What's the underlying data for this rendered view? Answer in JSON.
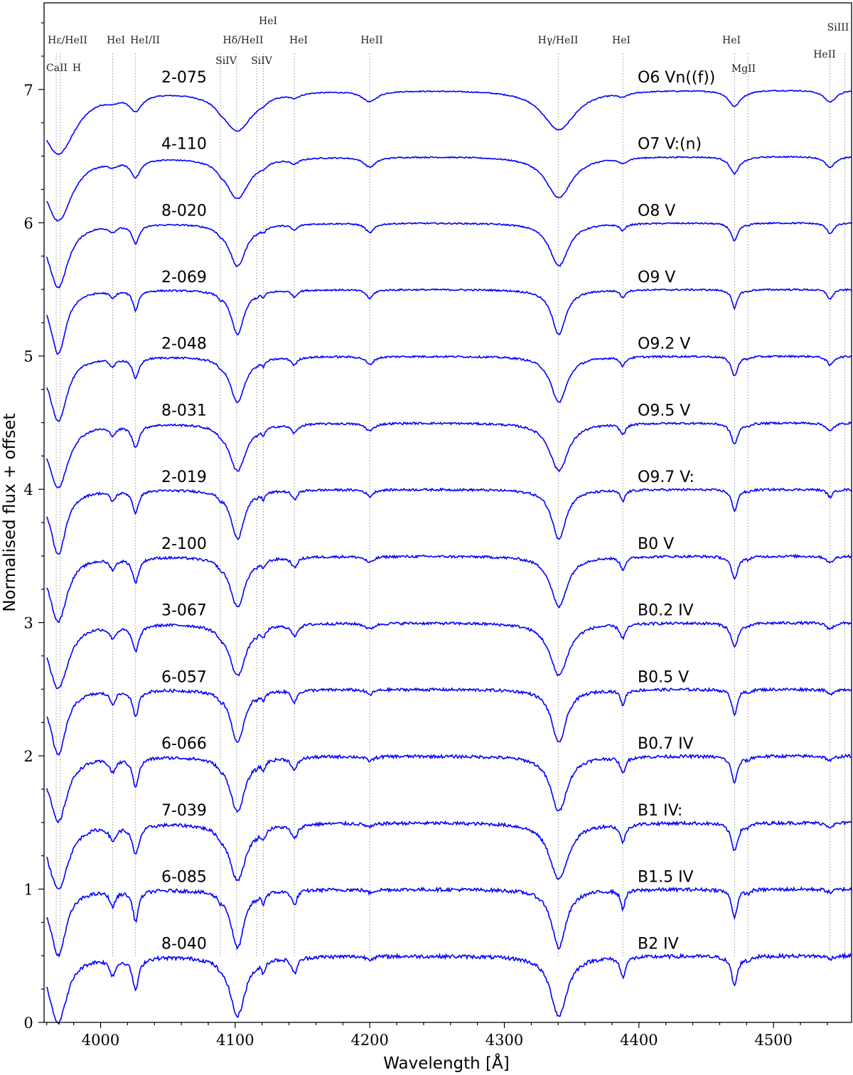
{
  "chart_data": {
    "type": "line",
    "xlabel": "Wavelength [Å]",
    "ylabel": "Normalised flux + offset",
    "xlim": [
      3958,
      4558
    ],
    "ylim": [
      0,
      7.65
    ],
    "x_ticks": [
      4000,
      4100,
      4200,
      4300,
      4400,
      4500
    ],
    "y_ticks": [
      0,
      1,
      2,
      3,
      4,
      5,
      6,
      7
    ],
    "grid": false,
    "line_color": "#0000ff",
    "marker_color": "#999999",
    "line_markers": [
      {
        "wavelength": 3967,
        "label": "CaII"
      },
      {
        "wavelength": 3970,
        "label": "Hε/HeII"
      },
      {
        "wavelength": 3970,
        "label": "H"
      },
      {
        "wavelength": 4009,
        "label": "HeI"
      },
      {
        "wavelength": 4026,
        "label": "HeI/II"
      },
      {
        "wavelength": 4089,
        "label": "SiIV"
      },
      {
        "wavelength": 4101,
        "label": "Hδ/HeII"
      },
      {
        "wavelength": 4116,
        "label": "SiIV"
      },
      {
        "wavelength": 4121,
        "label": "HeI"
      },
      {
        "wavelength": 4144,
        "label": "HeI"
      },
      {
        "wavelength": 4200,
        "label": "HeII"
      },
      {
        "wavelength": 4340,
        "label": "Hγ/HeII"
      },
      {
        "wavelength": 4388,
        "label": "HeI"
      },
      {
        "wavelength": 4471,
        "label": "HeI"
      },
      {
        "wavelength": 4481,
        "label": "MgII"
      },
      {
        "wavelength": 4542,
        "label": "HeII"
      },
      {
        "wavelength": 4553,
        "label": "SiIII"
      }
    ],
    "series": [
      {
        "name": "2-075",
        "sptype": "O6 Vn((f))",
        "offset": 7.0
      },
      {
        "name": "4-110",
        "sptype": "O7 V:(n)",
        "offset": 6.5
      },
      {
        "name": "8-020",
        "sptype": "O8 V",
        "offset": 6.0
      },
      {
        "name": "2-069",
        "sptype": "O9 V",
        "offset": 5.5
      },
      {
        "name": "2-048",
        "sptype": "O9.2 V",
        "offset": 5.0
      },
      {
        "name": "8-031",
        "sptype": "O9.5 V",
        "offset": 4.5
      },
      {
        "name": "2-019",
        "sptype": "O9.7 V:",
        "offset": 4.0
      },
      {
        "name": "2-100",
        "sptype": "B0 V",
        "offset": 3.5
      },
      {
        "name": "3-067",
        "sptype": "B0.2 IV",
        "offset": 3.0
      },
      {
        "name": "6-057",
        "sptype": "B0.5 V",
        "offset": 2.5
      },
      {
        "name": "6-066",
        "sptype": "B0.7 IV",
        "offset": 2.0
      },
      {
        "name": "7-039",
        "sptype": "B1 IV:",
        "offset": 1.5
      },
      {
        "name": "6-085",
        "sptype": "B1.5 IV",
        "offset": 1.0
      },
      {
        "name": "8-040",
        "sptype": "B2 IV",
        "offset": 0.5
      }
    ]
  }
}
